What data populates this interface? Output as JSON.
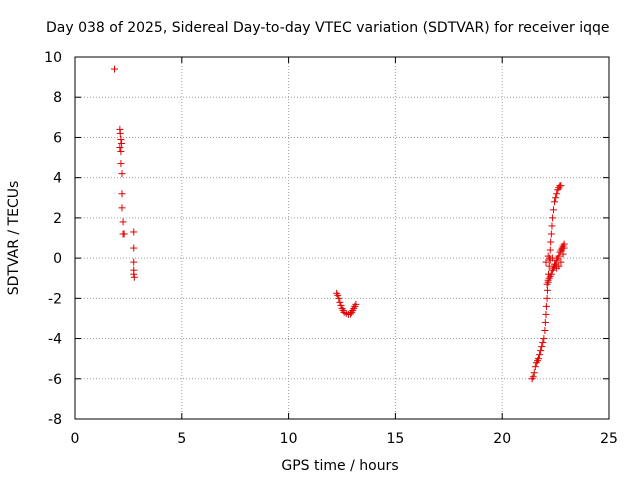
{
  "chart_data": {
    "type": "scatter",
    "title": "Day 038 of 2025, Sidereal Day-to-day VTEC variation (SDTVAR) for receiver iqqe",
    "xlabel": "GPS time / hours",
    "ylabel": "SDTVAR / TECUs",
    "xlim": [
      0,
      25
    ],
    "ylim": [
      -8,
      10
    ],
    "xticks": [
      0,
      5,
      10,
      15,
      20,
      25
    ],
    "yticks": [
      -8,
      -6,
      -4,
      -2,
      0,
      2,
      4,
      6,
      8,
      10
    ],
    "grid": true,
    "marker": "+",
    "color": "#e00000",
    "series": [
      {
        "name": "SDTVAR",
        "points": [
          [
            1.85,
            9.4
          ],
          [
            2.1,
            6.4
          ],
          [
            2.12,
            6.2
          ],
          [
            2.15,
            5.9
          ],
          [
            2.18,
            5.7
          ],
          [
            2.1,
            5.5
          ],
          [
            2.15,
            5.3
          ],
          [
            2.15,
            4.7
          ],
          [
            2.2,
            4.2
          ],
          [
            2.2,
            3.2
          ],
          [
            2.2,
            2.5
          ],
          [
            2.25,
            1.8
          ],
          [
            2.25,
            1.2
          ],
          [
            2.3,
            1.2
          ],
          [
            2.75,
            1.3
          ],
          [
            2.75,
            0.5
          ],
          [
            2.75,
            -0.2
          ],
          [
            2.75,
            -0.6
          ],
          [
            2.75,
            -0.8
          ],
          [
            2.78,
            -0.95
          ],
          [
            12.25,
            -1.75
          ],
          [
            12.3,
            -1.85
          ],
          [
            12.35,
            -2.0
          ],
          [
            12.4,
            -2.2
          ],
          [
            12.45,
            -2.35
          ],
          [
            12.5,
            -2.5
          ],
          [
            12.55,
            -2.6
          ],
          [
            12.6,
            -2.7
          ],
          [
            12.7,
            -2.75
          ],
          [
            12.8,
            -2.8
          ],
          [
            12.9,
            -2.78
          ],
          [
            12.95,
            -2.7
          ],
          [
            13.0,
            -2.6
          ],
          [
            13.05,
            -2.5
          ],
          [
            13.1,
            -2.4
          ],
          [
            13.15,
            -2.3
          ],
          [
            21.4,
            -6.0
          ],
          [
            21.45,
            -5.9
          ],
          [
            21.5,
            -5.7
          ],
          [
            21.55,
            -5.4
          ],
          [
            21.6,
            -5.2
          ],
          [
            21.65,
            -5.1
          ],
          [
            21.7,
            -5.0
          ],
          [
            21.75,
            -4.8
          ],
          [
            21.8,
            -4.6
          ],
          [
            21.85,
            -4.4
          ],
          [
            21.9,
            -4.2
          ],
          [
            21.95,
            -4.0
          ],
          [
            22.0,
            -3.6
          ],
          [
            22.02,
            -3.2
          ],
          [
            22.05,
            -2.8
          ],
          [
            22.07,
            -2.4
          ],
          [
            22.1,
            -2.0
          ],
          [
            22.12,
            -1.6
          ],
          [
            22.15,
            -1.2
          ],
          [
            22.17,
            -0.8
          ],
          [
            22.2,
            -0.4
          ],
          [
            22.22,
            0.0
          ],
          [
            22.25,
            0.4
          ],
          [
            22.27,
            0.8
          ],
          [
            22.3,
            1.2
          ],
          [
            22.33,
            1.6
          ],
          [
            22.36,
            2.0
          ],
          [
            22.4,
            2.4
          ],
          [
            22.45,
            2.8
          ],
          [
            22.5,
            3.0
          ],
          [
            22.55,
            3.2
          ],
          [
            22.6,
            3.4
          ],
          [
            22.65,
            3.5
          ],
          [
            22.7,
            3.6
          ],
          [
            22.75,
            3.6
          ],
          [
            22.1,
            -1.3
          ],
          [
            22.15,
            -1.1
          ],
          [
            22.2,
            -1.0
          ],
          [
            22.25,
            -0.9
          ],
          [
            22.3,
            -0.8
          ],
          [
            22.35,
            -0.6
          ],
          [
            22.4,
            -0.5
          ],
          [
            22.45,
            -0.4
          ],
          [
            22.5,
            -0.3
          ],
          [
            22.55,
            -0.1
          ],
          [
            22.6,
            0.0
          ],
          [
            22.65,
            0.1
          ],
          [
            22.7,
            0.3
          ],
          [
            22.75,
            0.4
          ],
          [
            22.8,
            0.5
          ],
          [
            22.85,
            0.6
          ],
          [
            22.9,
            0.7
          ],
          [
            22.05,
            -0.2
          ],
          [
            22.15,
            0.1
          ],
          [
            22.25,
            -0.1
          ],
          [
            22.35,
            0.0
          ],
          [
            22.45,
            -0.3
          ],
          [
            22.55,
            -0.5
          ],
          [
            22.65,
            -0.4
          ],
          [
            22.75,
            -0.2
          ],
          [
            22.85,
            0.2
          ],
          [
            22.9,
            0.5
          ]
        ]
      }
    ]
  }
}
